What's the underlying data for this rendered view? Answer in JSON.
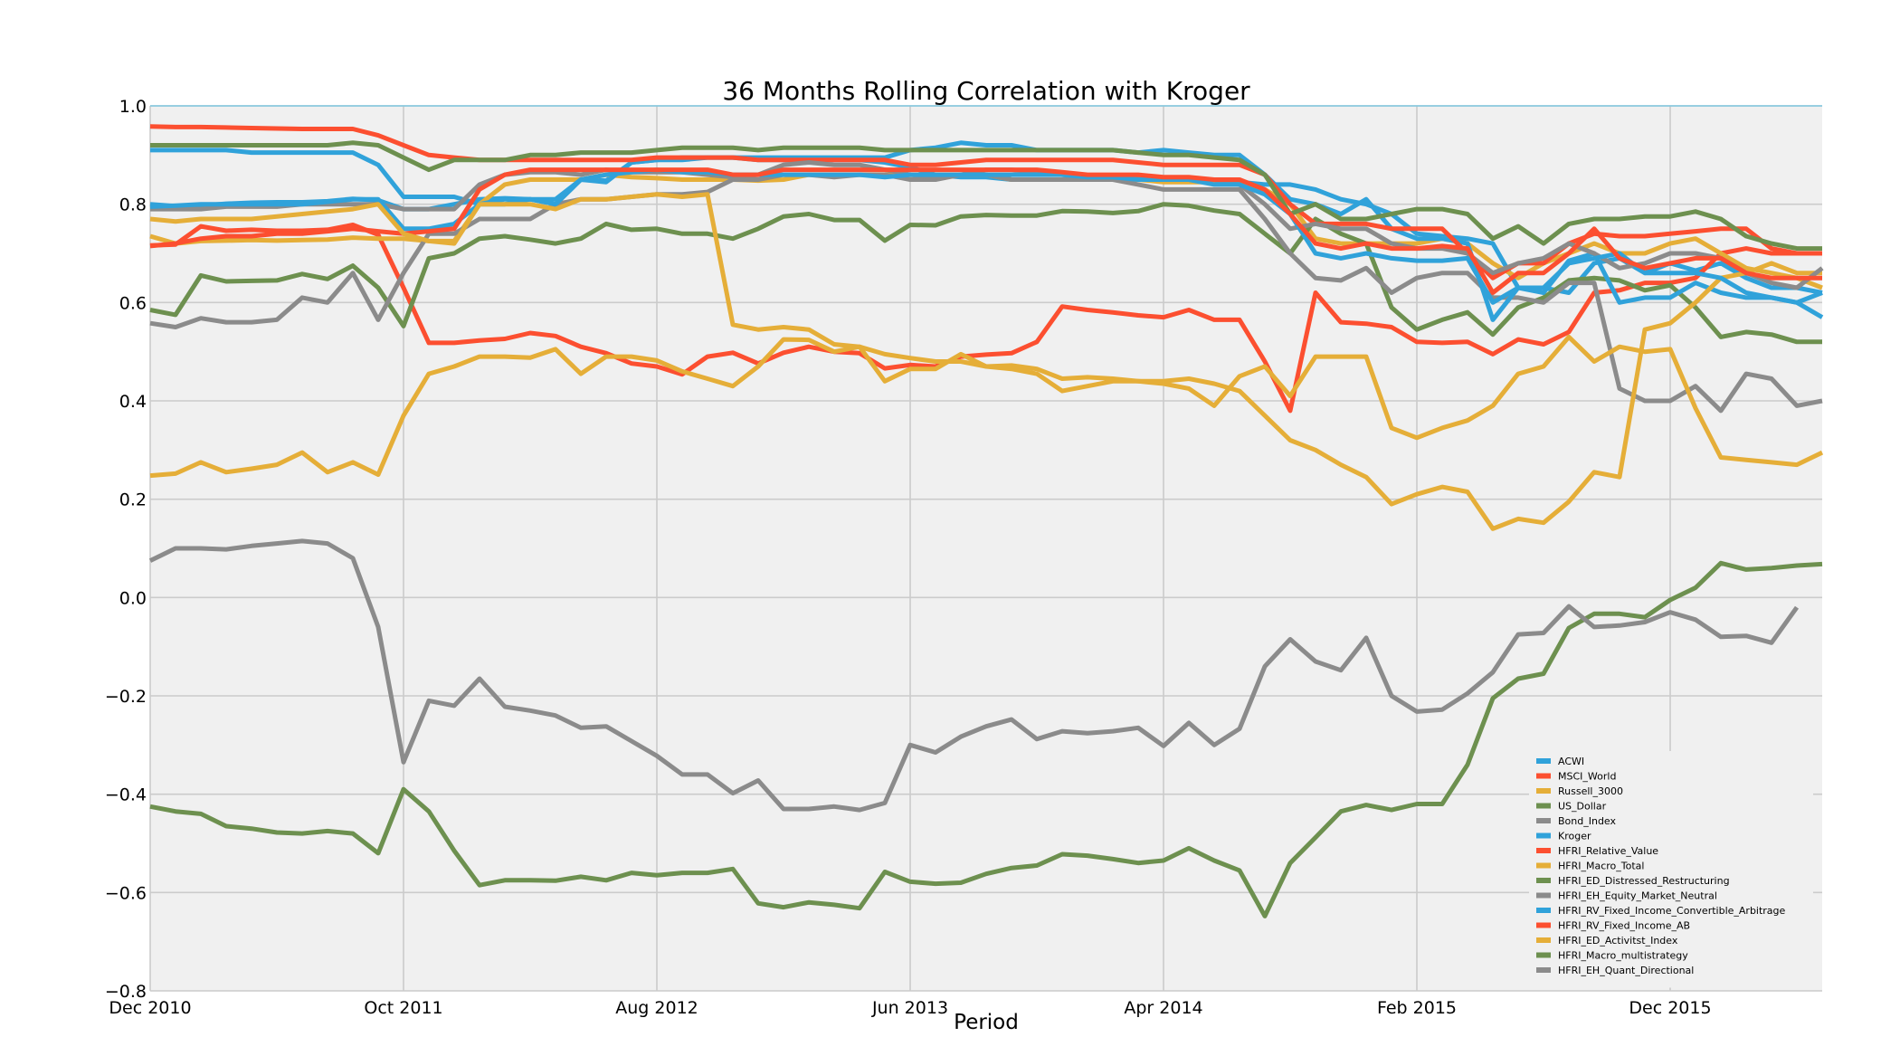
{
  "chart_data": {
    "type": "line",
    "title": "36 Months Rolling Correlation with Kroger",
    "xlabel": "Period",
    "ylabel": "",
    "ylim": [
      -0.8,
      1.0
    ],
    "x_tick_labels": [
      "Dec 2010",
      "Oct 2011",
      "Aug 2012",
      "Jun 2013",
      "Apr 2014",
      "Feb 2015",
      "Dec 2015"
    ],
    "x_tick_index": [
      0,
      10,
      20,
      30,
      40,
      50,
      60
    ],
    "y_ticks": [
      -0.8,
      -0.6,
      -0.4,
      -0.2,
      0.0,
      0.2,
      0.4,
      0.6,
      0.8,
      1.0
    ],
    "y_tick_labels": [
      "−0.8",
      "−0.6",
      "−0.4",
      "−0.2",
      "0.0",
      "0.2",
      "0.4",
      "0.6",
      "0.8",
      "1.0"
    ],
    "grid": true,
    "legend_position": "lower-right",
    "background": "#f0f0f0",
    "series": [
      {
        "name": "ACWI",
        "color": "#30a2da",
        "values": [
          0.8,
          0.796,
          0.797,
          0.801,
          0.803,
          0.804,
          0.804,
          0.806,
          0.811,
          0.808,
          0.79,
          0.79,
          0.8,
          0.81,
          0.812,
          0.81,
          0.8,
          0.85,
          0.848,
          0.885,
          0.89,
          0.89,
          0.895,
          0.895,
          0.89,
          0.89,
          0.89,
          0.89,
          0.89,
          0.885,
          0.875,
          0.86,
          0.855,
          0.855,
          0.85,
          0.85,
          0.85,
          0.85,
          0.85,
          0.85,
          0.85,
          0.85,
          0.845,
          0.845,
          0.84,
          0.84,
          0.83,
          0.81,
          0.8,
          0.78,
          0.74,
          0.735,
          0.73,
          0.72,
          0.63,
          0.63,
          0.62,
          0.68,
          0.69,
          0.66,
          0.68,
          0.665,
          0.68,
          0.65,
          0.63,
          0.63,
          0.62
        ]
      },
      {
        "name": "MSCI_World",
        "color": "#fc4f30",
        "values": [
          0.716,
          0.718,
          0.755,
          0.746,
          0.748,
          0.746,
          0.746,
          0.748,
          0.758,
          0.738,
          0.63,
          0.518,
          0.518,
          0.523,
          0.526,
          0.538,
          0.532,
          0.51,
          0.497,
          0.476,
          0.47,
          0.454,
          0.49,
          0.498,
          0.476,
          0.498,
          0.51,
          0.5,
          0.497,
          0.466,
          0.473,
          0.47,
          0.49,
          0.494,
          0.497,
          0.52,
          0.592,
          0.585,
          0.58,
          0.574,
          0.57,
          0.585,
          0.565,
          0.565,
          0.48,
          0.38,
          0.62,
          0.56,
          0.557,
          0.55,
          0.52,
          0.518,
          0.52,
          0.495,
          0.525,
          0.515,
          0.54,
          0.62,
          0.625,
          0.64,
          0.64,
          0.65,
          0.7,
          0.71,
          0.7,
          0.7,
          0.7
        ]
      },
      {
        "name": "Russell_3000",
        "color": "#e5ae38",
        "values": [
          0.735,
          0.72,
          0.725,
          0.726,
          0.727,
          0.726,
          0.727,
          0.728,
          0.732,
          0.73,
          0.73,
          0.725,
          0.725,
          0.8,
          0.84,
          0.85,
          0.85,
          0.85,
          0.86,
          0.855,
          0.853,
          0.85,
          0.85,
          0.85,
          0.848,
          0.85,
          0.86,
          0.86,
          0.86,
          0.86,
          0.86,
          0.86,
          0.86,
          0.86,
          0.85,
          0.85,
          0.85,
          0.85,
          0.85,
          0.85,
          0.845,
          0.845,
          0.845,
          0.84,
          0.83,
          0.8,
          0.73,
          0.72,
          0.72,
          0.72,
          0.72,
          0.73,
          0.72,
          0.68,
          0.65,
          0.68,
          0.7,
          0.72,
          0.7,
          0.7,
          0.72,
          0.73,
          0.7,
          0.67,
          0.66,
          0.65,
          0.63
        ]
      },
      {
        "name": "US_Dollar",
        "color": "#6d904f",
        "values": [
          0.585,
          0.575,
          0.655,
          0.643,
          0.644,
          0.645,
          0.658,
          0.648,
          0.675,
          0.63,
          0.552,
          0.69,
          0.7,
          0.73,
          0.735,
          0.728,
          0.72,
          0.73,
          0.76,
          0.748,
          0.75,
          0.74,
          0.74,
          0.73,
          0.75,
          0.775,
          0.78,
          0.768,
          0.768,
          0.726,
          0.758,
          0.757,
          0.775,
          0.778,
          0.777,
          0.777,
          0.786,
          0.785,
          0.782,
          0.786,
          0.8,
          0.797,
          0.787,
          0.78,
          0.74,
          0.7,
          0.77,
          0.74,
          0.72,
          0.59,
          0.545,
          0.565,
          0.58,
          0.535,
          0.59,
          0.61,
          0.645,
          0.65,
          0.645,
          0.625,
          0.635,
          0.59,
          0.53,
          0.54,
          0.535,
          0.52,
          0.52
        ]
      },
      {
        "name": "Bond_Index",
        "color": "#8b8b8b",
        "values": [
          0.558,
          0.55,
          0.568,
          0.56,
          0.56,
          0.565,
          0.61,
          0.6,
          0.66,
          0.565,
          0.66,
          0.74,
          0.74,
          0.77,
          0.77,
          0.77,
          0.8,
          0.81,
          0.81,
          0.815,
          0.82,
          0.82,
          0.825,
          0.85,
          0.85,
          0.86,
          0.86,
          0.855,
          0.86,
          0.86,
          0.85,
          0.85,
          0.86,
          0.86,
          0.85,
          0.85,
          0.85,
          0.85,
          0.85,
          0.84,
          0.83,
          0.83,
          0.83,
          0.83,
          0.77,
          0.7,
          0.65,
          0.645,
          0.67,
          0.62,
          0.65,
          0.66,
          0.66,
          0.61,
          0.61,
          0.6,
          0.64,
          0.64,
          0.425,
          0.4,
          0.4,
          0.43,
          0.38,
          0.455,
          0.445,
          0.39,
          0.4
        ]
      },
      {
        "name": "Kroger",
        "color": "#30a2da",
        "values": [
          0.91,
          0.91,
          0.91,
          0.91,
          0.905,
          0.905,
          0.905,
          0.905,
          0.905,
          0.88,
          0.815,
          0.815,
          0.815,
          0.8,
          0.81,
          0.81,
          0.81,
          0.85,
          0.845,
          0.885,
          0.89,
          0.895,
          0.895,
          0.895,
          0.895,
          0.895,
          0.895,
          0.895,
          0.895,
          0.895,
          0.91,
          0.915,
          0.925,
          0.92,
          0.92,
          0.91,
          0.91,
          0.91,
          0.91,
          0.905,
          0.91,
          0.905,
          0.9,
          0.9,
          0.86,
          0.81,
          0.8,
          0.78,
          0.81,
          0.75,
          0.73,
          0.73,
          0.72,
          0.565,
          0.63,
          0.62,
          0.685,
          0.7,
          0.6,
          0.61,
          0.61,
          0.64,
          0.62,
          0.61,
          0.61,
          0.6,
          0.62
        ]
      },
      {
        "name": "HFRI_Relative_Value",
        "color": "#fc4f30",
        "values": [
          0.958,
          0.957,
          0.957,
          0.956,
          0.955,
          0.954,
          0.953,
          0.953,
          0.953,
          0.94,
          0.92,
          0.9,
          0.895,
          0.89,
          0.89,
          0.89,
          0.89,
          0.89,
          0.89,
          0.89,
          0.895,
          0.895,
          0.895,
          0.895,
          0.89,
          0.89,
          0.89,
          0.89,
          0.89,
          0.89,
          0.88,
          0.88,
          0.885,
          0.89,
          0.89,
          0.89,
          0.89,
          0.89,
          0.89,
          0.885,
          0.88,
          0.88,
          0.88,
          0.88,
          0.86,
          0.8,
          0.76,
          0.76,
          0.76,
          0.75,
          0.75,
          0.75,
          0.7,
          0.65,
          0.68,
          0.68,
          0.72,
          0.74,
          0.735,
          0.735,
          0.74,
          0.745,
          0.75,
          0.75,
          0.71,
          0.7,
          0.7
        ]
      },
      {
        "name": "HFRI_Macro_Total",
        "color": "#e5ae38",
        "values": [
          0.248,
          0.252,
          0.275,
          0.255,
          0.262,
          0.27,
          0.295,
          0.255,
          0.275,
          0.25,
          0.37,
          0.455,
          0.47,
          0.49,
          0.49,
          0.488,
          0.505,
          0.455,
          0.49,
          0.49,
          0.482,
          0.46,
          0.445,
          0.43,
          0.47,
          0.525,
          0.524,
          0.5,
          0.51,
          0.44,
          0.465,
          0.465,
          0.495,
          0.47,
          0.472,
          0.465,
          0.445,
          0.448,
          0.445,
          0.44,
          0.44,
          0.445,
          0.435,
          0.42,
          0.37,
          0.32,
          0.3,
          0.27,
          0.245,
          0.19,
          0.21,
          0.225,
          0.215,
          0.14,
          0.16,
          0.152,
          0.195,
          0.255,
          0.245,
          0.545,
          0.558,
          0.6,
          0.65,
          0.66,
          0.68,
          0.66,
          0.66
        ]
      },
      {
        "name": "HFRI_ED_Distressed_Restructuring",
        "color": "#6d904f",
        "values": [
          0.92,
          0.92,
          0.92,
          0.92,
          0.92,
          0.92,
          0.92,
          0.92,
          0.925,
          0.92,
          0.895,
          0.87,
          0.89,
          0.89,
          0.89,
          0.9,
          0.9,
          0.905,
          0.905,
          0.905,
          0.91,
          0.915,
          0.915,
          0.915,
          0.91,
          0.915,
          0.915,
          0.915,
          0.915,
          0.91,
          0.91,
          0.91,
          0.91,
          0.91,
          0.91,
          0.91,
          0.91,
          0.91,
          0.91,
          0.905,
          0.9,
          0.9,
          0.895,
          0.89,
          0.86,
          0.78,
          0.8,
          0.77,
          0.77,
          0.78,
          0.79,
          0.79,
          0.78,
          0.73,
          0.755,
          0.72,
          0.76,
          0.77,
          0.77,
          0.775,
          0.775,
          0.785,
          0.77,
          0.735,
          0.72,
          0.71,
          0.71
        ]
      },
      {
        "name": "HFRI_EH_Equity_Market_Neutral",
        "color": "#8b8b8b",
        "values": [
          0.79,
          0.79,
          0.79,
          0.795,
          0.795,
          0.795,
          0.8,
          0.8,
          0.8,
          0.8,
          0.79,
          0.79,
          0.79,
          0.84,
          0.86,
          0.865,
          0.865,
          0.86,
          0.87,
          0.865,
          0.865,
          0.865,
          0.86,
          0.855,
          0.86,
          0.88,
          0.885,
          0.88,
          0.88,
          0.87,
          0.86,
          0.855,
          0.86,
          0.87,
          0.87,
          0.865,
          0.86,
          0.855,
          0.855,
          0.855,
          0.85,
          0.85,
          0.85,
          0.84,
          0.8,
          0.75,
          0.76,
          0.75,
          0.75,
          0.72,
          0.71,
          0.71,
          0.7,
          0.66,
          0.68,
          0.69,
          0.72,
          0.7,
          0.67,
          0.68,
          0.7,
          0.7,
          0.69,
          0.66,
          0.64,
          0.63,
          0.67
        ]
      },
      {
        "name": "HFRI_RV_Fixed_Income_Convertible_Arbitrage",
        "color": "#30a2da",
        "values": [
          0.795,
          0.797,
          0.8,
          0.8,
          0.8,
          0.8,
          0.8,
          0.805,
          0.81,
          0.81,
          0.75,
          0.75,
          0.76,
          0.8,
          0.8,
          0.81,
          0.8,
          0.85,
          0.86,
          0.865,
          0.87,
          0.865,
          0.865,
          0.86,
          0.86,
          0.86,
          0.86,
          0.86,
          0.86,
          0.855,
          0.86,
          0.86,
          0.86,
          0.86,
          0.86,
          0.86,
          0.86,
          0.855,
          0.855,
          0.85,
          0.85,
          0.85,
          0.84,
          0.84,
          0.82,
          0.78,
          0.7,
          0.69,
          0.7,
          0.69,
          0.685,
          0.685,
          0.69,
          0.6,
          0.63,
          0.63,
          0.68,
          0.69,
          0.7,
          0.66,
          0.66,
          0.66,
          0.65,
          0.62,
          0.61,
          0.6,
          0.57
        ]
      },
      {
        "name": "HFRI_RV_Fixed_Income_AB",
        "color": "#fc4f30",
        "values": [
          0.715,
          0.72,
          0.73,
          0.735,
          0.735,
          0.74,
          0.74,
          0.745,
          0.75,
          0.745,
          0.74,
          0.745,
          0.75,
          0.83,
          0.86,
          0.87,
          0.87,
          0.87,
          0.87,
          0.87,
          0.87,
          0.87,
          0.87,
          0.86,
          0.86,
          0.87,
          0.87,
          0.87,
          0.87,
          0.87,
          0.87,
          0.87,
          0.87,
          0.87,
          0.87,
          0.87,
          0.865,
          0.86,
          0.86,
          0.86,
          0.855,
          0.855,
          0.85,
          0.85,
          0.83,
          0.78,
          0.72,
          0.71,
          0.72,
          0.71,
          0.71,
          0.715,
          0.71,
          0.62,
          0.66,
          0.66,
          0.7,
          0.75,
          0.69,
          0.67,
          0.68,
          0.69,
          0.69,
          0.66,
          0.65,
          0.65,
          0.65
        ]
      },
      {
        "name": "HFRI_ED_Activitst_Index",
        "color": "#e5ae38",
        "values": [
          0.77,
          0.765,
          0.77,
          0.77,
          0.77,
          0.775,
          0.78,
          0.785,
          0.79,
          0.8,
          0.74,
          0.725,
          0.72,
          0.8,
          0.8,
          0.8,
          0.79,
          0.81,
          0.81,
          0.815,
          0.82,
          0.815,
          0.82,
          0.555,
          0.545,
          0.55,
          0.545,
          0.515,
          0.51,
          0.495,
          0.487,
          0.48,
          0.48,
          0.47,
          0.465,
          0.455,
          0.42,
          0.43,
          0.44,
          0.44,
          0.435,
          0.425,
          0.39,
          0.45,
          0.47,
          0.41,
          0.49,
          0.49,
          0.49,
          0.345,
          0.325,
          0.345,
          0.36,
          0.39,
          0.455,
          0.47,
          0.53,
          0.48,
          0.51,
          0.5,
          0.505,
          0.385,
          0.285,
          0.28,
          0.275,
          0.27,
          0.295
        ]
      },
      {
        "name": "HFRI_Macro_multistrategy",
        "color": "#6d904f",
        "values": [
          -0.425,
          -0.435,
          -0.44,
          -0.465,
          -0.47,
          -0.478,
          -0.48,
          -0.475,
          -0.48,
          -0.52,
          -0.39,
          -0.435,
          -0.515,
          -0.585,
          -0.575,
          -0.575,
          -0.576,
          -0.568,
          -0.575,
          -0.56,
          -0.565,
          -0.56,
          -0.56,
          -0.552,
          -0.622,
          -0.63,
          -0.62,
          -0.625,
          -0.632,
          -0.558,
          -0.578,
          -0.582,
          -0.58,
          -0.562,
          -0.55,
          -0.545,
          -0.522,
          -0.525,
          -0.532,
          -0.54,
          -0.535,
          -0.51,
          -0.535,
          -0.555,
          -0.648,
          -0.54,
          -0.488,
          -0.435,
          -0.422,
          -0.432,
          -0.42,
          -0.42,
          -0.34,
          -0.205,
          -0.165,
          -0.155,
          -0.062,
          -0.033,
          -0.033,
          -0.04,
          -0.005,
          0.02,
          0.07,
          0.057,
          0.06,
          0.065,
          0.068
        ]
      },
      {
        "name": "HFRI_EH_Quant_Directional",
        "color": "#8b8b8b",
        "values": [
          0.075,
          0.1,
          0.1,
          0.098,
          0.105,
          0.11,
          0.115,
          0.11,
          0.08,
          -0.06,
          -0.335,
          -0.21,
          -0.22,
          -0.165,
          -0.222,
          -0.23,
          -0.24,
          -0.265,
          -0.262,
          -0.292,
          -0.322,
          -0.36,
          -0.36,
          -0.398,
          -0.372,
          -0.43,
          -0.43,
          -0.425,
          -0.432,
          -0.418,
          -0.3,
          -0.315,
          -0.283,
          -0.262,
          -0.248,
          -0.288,
          -0.272,
          -0.276,
          -0.272,
          -0.265,
          -0.302,
          -0.255,
          -0.3,
          -0.267,
          -0.14,
          -0.085,
          -0.13,
          -0.148,
          -0.082,
          -0.2,
          -0.232,
          -0.228,
          -0.195,
          -0.152,
          -0.075,
          -0.072,
          -0.018,
          -0.06,
          -0.057,
          -0.05,
          -0.03,
          -0.045,
          -0.08,
          -0.078,
          -0.092,
          -0.02
        ]
      }
    ]
  }
}
